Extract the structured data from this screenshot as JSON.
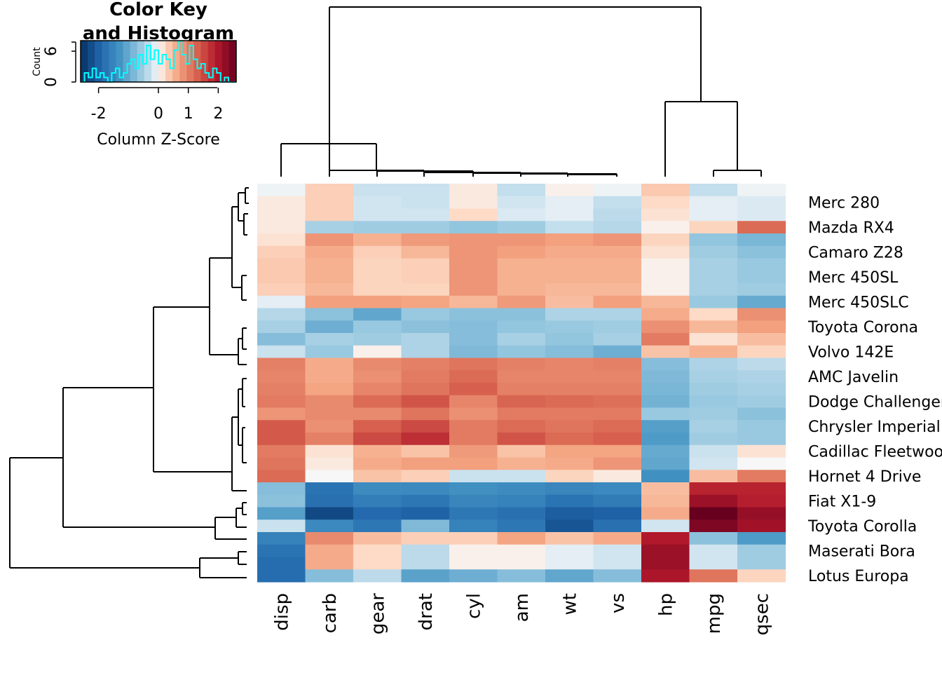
{
  "chart_data": {
    "type": "heatmap",
    "color_key": {
      "title_lines": [
        "Color Key",
        "and Histogram"
      ],
      "ylabel": "Count",
      "y_ticks": [
        "0",
        "6"
      ],
      "x_ticks": [
        "-2",
        "0",
        "1",
        "2"
      ],
      "xlabel": "Column Z-Score",
      "range": [
        -2.6,
        2.6
      ],
      "histogram_color": "#00ffff"
    },
    "palette": {
      "low": "#053061",
      "mid": "#f7f7f7",
      "high": "#67001f"
    },
    "columns": [
      "disp",
      "carb",
      "gear",
      "drat",
      "cyl",
      "am",
      "wt",
      "vs",
      "hp",
      "mpg",
      "qsec"
    ],
    "row_labels_shown": [
      "Merc 280",
      "Mazda RX4",
      "Camaro Z28",
      "Merc 450SL",
      "Merc 450SLC",
      "Toyota Corona",
      "Volvo 142E",
      "AMC Javelin",
      "Dodge Challenger",
      "Chrysler Imperial",
      "Cadillac Fleetwood",
      "Hornet 4 Drive",
      "Fiat X1-9",
      "Toyota Corolla",
      "Maserati Bora",
      "Lotus Europa"
    ],
    "n_rows": 32,
    "values": [
      [
        -0.05,
        0.3,
        -0.25,
        -0.25,
        0.1,
        -0.3,
        0.05,
        -0.05,
        0.35,
        -0.3,
        -0.05
      ],
      [
        0.1,
        0.3,
        -0.2,
        -0.25,
        0.1,
        -0.2,
        -0.1,
        -0.3,
        0.2,
        -0.1,
        -0.15
      ],
      [
        0.1,
        0.3,
        -0.2,
        -0.2,
        0.2,
        -0.15,
        -0.1,
        -0.35,
        0.15,
        -0.1,
        -0.15
      ],
      [
        0.1,
        -0.5,
        -0.55,
        -0.55,
        -0.65,
        -0.55,
        -0.3,
        -0.4,
        0.05,
        0.25,
        1.2
      ],
      [
        0.15,
        0.8,
        0.55,
        0.75,
        0.8,
        0.8,
        0.7,
        0.8,
        0.25,
        -0.65,
        -0.85
      ],
      [
        0.3,
        0.6,
        0.3,
        0.5,
        0.8,
        0.7,
        0.6,
        0.6,
        0.15,
        -0.55,
        -0.7
      ],
      [
        0.35,
        0.55,
        0.25,
        0.3,
        0.8,
        0.55,
        0.55,
        0.55,
        0.05,
        -0.5,
        -0.6
      ],
      [
        0.35,
        0.55,
        0.25,
        0.3,
        0.8,
        0.55,
        0.55,
        0.55,
        0.05,
        -0.5,
        -0.6
      ],
      [
        0.3,
        0.5,
        0.25,
        0.25,
        0.8,
        0.55,
        0.5,
        0.5,
        0.05,
        -0.5,
        -0.55
      ],
      [
        -0.1,
        0.7,
        0.7,
        0.65,
        0.5,
        0.75,
        0.45,
        0.7,
        0.5,
        -0.6,
        -1.0
      ],
      [
        -0.4,
        -0.7,
        -1.05,
        -0.6,
        -0.7,
        -0.7,
        -0.45,
        -0.45,
        0.6,
        0.2,
        0.85
      ],
      [
        -0.5,
        -0.95,
        -0.6,
        -0.7,
        -0.75,
        -0.65,
        -0.6,
        -0.55,
        0.85,
        0.5,
        0.7
      ],
      [
        -0.75,
        -0.5,
        -0.55,
        -0.45,
        -0.75,
        -0.5,
        -0.65,
        -0.5,
        1.05,
        0.15,
        0.45
      ],
      [
        -0.25,
        -0.6,
        0.05,
        -0.45,
        -0.8,
        -0.65,
        -0.75,
        -0.95,
        0.4,
        0.55,
        0.25
      ],
      [
        1.0,
        0.6,
        0.9,
        1.0,
        1.1,
        1.0,
        0.95,
        1.0,
        -0.75,
        -0.45,
        -0.35
      ],
      [
        0.95,
        0.6,
        0.85,
        1.05,
        1.2,
        0.95,
        0.95,
        0.95,
        -0.8,
        -0.5,
        -0.45
      ],
      [
        1.0,
        0.65,
        0.95,
        1.1,
        1.3,
        1.0,
        1.0,
        1.0,
        -0.85,
        -0.55,
        -0.5
      ],
      [
        1.05,
        0.9,
        1.2,
        1.4,
        0.95,
        1.25,
        1.2,
        1.15,
        -0.9,
        -0.6,
        -0.55
      ],
      [
        0.8,
        0.9,
        0.9,
        1.1,
        0.85,
        1.05,
        1.05,
        1.05,
        -0.6,
        -0.55,
        -0.7
      ],
      [
        1.35,
        0.85,
        1.3,
        1.5,
        1.05,
        1.2,
        1.1,
        1.2,
        -1.15,
        -0.5,
        -0.6
      ],
      [
        1.35,
        1.0,
        1.5,
        1.75,
        1.05,
        1.4,
        1.2,
        1.3,
        -1.2,
        -0.55,
        -0.6
      ],
      [
        1.05,
        0.15,
        0.55,
        0.4,
        0.75,
        0.4,
        0.65,
        0.65,
        -1.0,
        -0.25,
        0.15
      ],
      [
        1.1,
        0.1,
        0.6,
        0.7,
        0.7,
        0.55,
        0.6,
        0.8,
        -1.05,
        -0.2,
        0.0
      ],
      [
        1.2,
        0.0,
        0.4,
        0.3,
        -0.25,
        -0.25,
        0.25,
        0.1,
        -1.35,
        0.45,
        1.05
      ],
      [
        -0.75,
        -1.75,
        -1.4,
        -1.45,
        -1.35,
        -1.4,
        -1.5,
        -1.45,
        0.45,
        1.85,
        1.85
      ],
      [
        -0.7,
        -1.8,
        -1.6,
        -1.7,
        -1.5,
        -1.55,
        -1.75,
        -1.65,
        0.5,
        2.15,
        1.9
      ],
      [
        -1.15,
        -2.3,
        -1.9,
        -2.0,
        -1.7,
        -1.8,
        -2.05,
        -2.0,
        0.6,
        2.6,
        2.2
      ],
      [
        -0.25,
        -1.45,
        -1.7,
        -0.8,
        -1.55,
        -1.7,
        -2.15,
        -1.8,
        -0.2,
        2.4,
        2.1
      ],
      [
        -1.55,
        0.9,
        0.45,
        0.3,
        0.3,
        0.65,
        0.4,
        0.6,
        1.95,
        -0.7,
        -1.2
      ],
      [
        -1.75,
        0.6,
        0.2,
        -0.35,
        0.05,
        0.05,
        -0.1,
        -0.2,
        2.15,
        -0.2,
        -0.55
      ],
      [
        -1.85,
        0.6,
        0.2,
        -0.35,
        0.05,
        0.05,
        -0.1,
        -0.2,
        2.15,
        -0.2,
        -0.55
      ],
      [
        -1.85,
        -0.75,
        -0.35,
        -1.1,
        -0.95,
        -0.75,
        -1.05,
        -0.75,
        2.0,
        1.1,
        0.25
      ]
    ]
  }
}
